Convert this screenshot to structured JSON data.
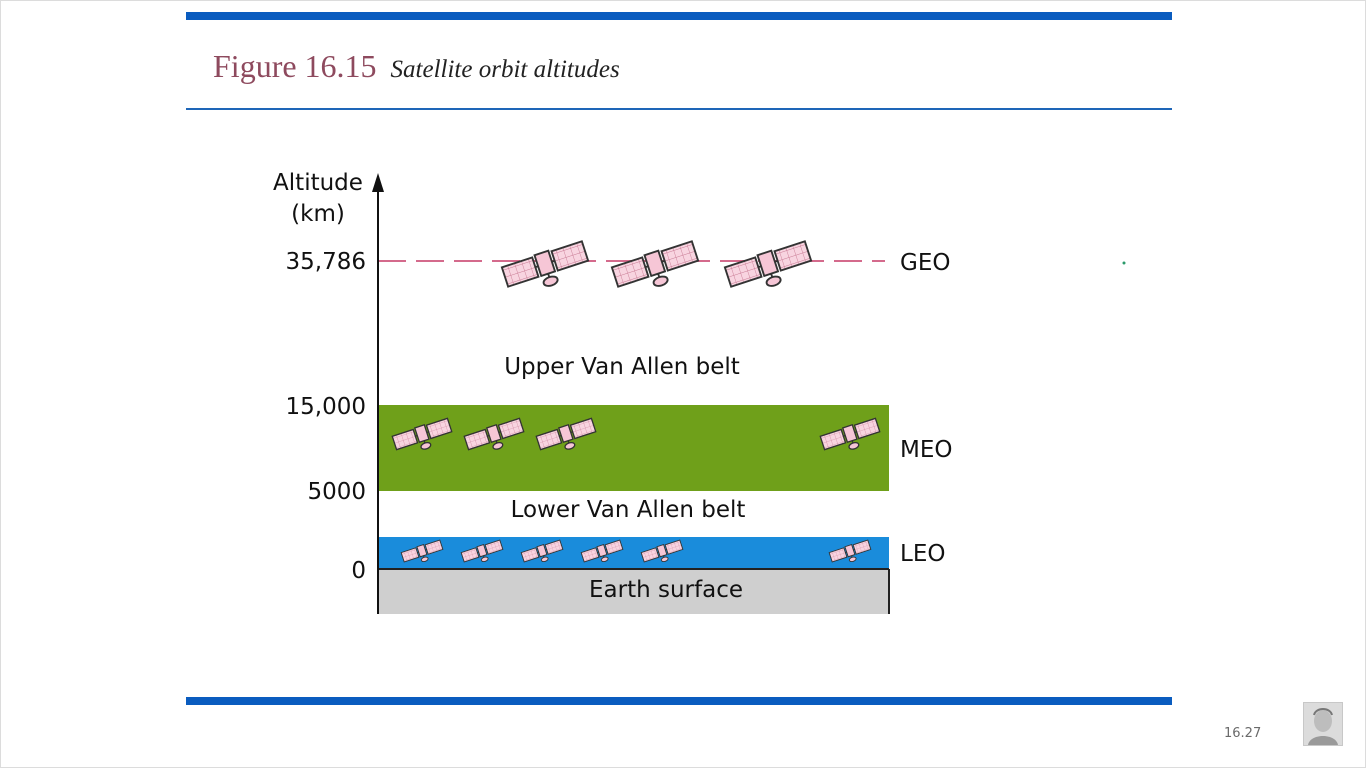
{
  "figure": {
    "number": "Figure 16.15",
    "caption": "Satellite orbit altitudes"
  },
  "axis": {
    "label_line1": "Altitude",
    "label_line2": "(km)",
    "ticks": [
      "35,786",
      "15,000",
      "5000",
      "0"
    ]
  },
  "orbits": {
    "geo": "GEO",
    "meo": "MEO",
    "leo": "LEO"
  },
  "regions": {
    "upper_belt": "Upper Van Allen belt",
    "lower_belt": "Lower Van Allen belt",
    "earth": "Earth surface"
  },
  "colors": {
    "meo_band": "#6fa01a",
    "leo_band": "#1a8cdb",
    "earth": "#cfcfcf",
    "geo_line": "#d46a8c",
    "satellite": "#f6c6d6"
  },
  "icons": {
    "satellite": "satellite-icon",
    "avatar": "presenter-avatar"
  },
  "footer": {
    "page_number": "16.27"
  }
}
